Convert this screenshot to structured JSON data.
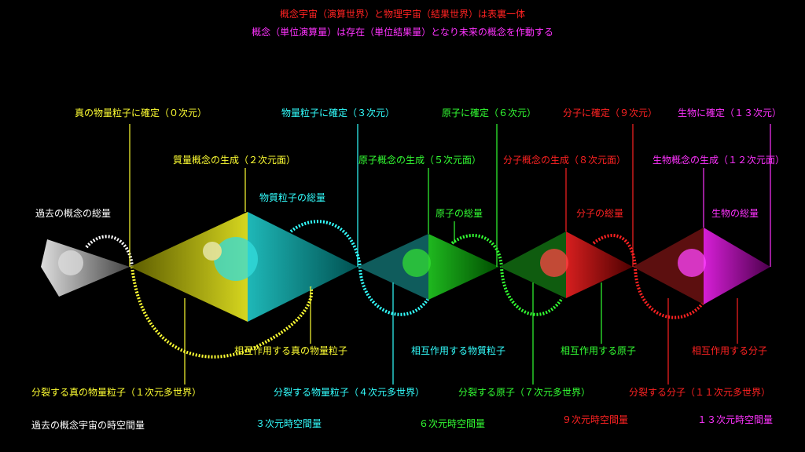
{
  "header": {
    "title": "概念宇宙（演算世界）と物理宇宙（結果世界）は表裏一体",
    "subtitle": "概念（単位演算量）は存在（単位結果量）となり未来の概念を作動する"
  },
  "labels": [
    {
      "text": "真の物量粒子に確定（０次元）"
    },
    {
      "text": "質量概念の生成（２次元面）"
    },
    {
      "text": "物質粒子の総量"
    },
    {
      "text": "物量粒子に確定（３次元）"
    },
    {
      "text": "原子概念の生成（５次元面）"
    },
    {
      "text": "原子に確定（６次元）"
    },
    {
      "text": "原子の総量"
    },
    {
      "text": "分子に確定（９次元）"
    },
    {
      "text": "分子概念の生成（８次元面）"
    },
    {
      "text": "分子の総量"
    },
    {
      "text": "生物に確定（１３次元）"
    },
    {
      "text": "生物概念の生成（１２次元面）"
    },
    {
      "text": "生物の総量"
    },
    {
      "text": "過去の概念の総量"
    },
    {
      "text": "相互作用する真の物量粒子"
    },
    {
      "text": "相互作用する物質粒子"
    },
    {
      "text": "相互作用する原子"
    },
    {
      "text": "相互作用する分子"
    },
    {
      "text": "分裂する真の物量粒子（１次元多世界）"
    },
    {
      "text": "分裂する物量粒子（４次元多世界）"
    },
    {
      "text": "分裂する原子（７次元多世界）"
    },
    {
      "text": "分裂する分子（１１次元多世界）"
    },
    {
      "text": "過去の概念宇宙の時空間量"
    },
    {
      "text": "３次元時空間量"
    },
    {
      "text": "６次元時空間量"
    },
    {
      "text": "９次元時空間量"
    },
    {
      "text": "１３次元時空間量"
    }
  ]
}
